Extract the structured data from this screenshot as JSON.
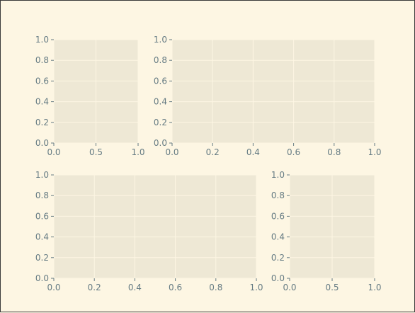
{
  "figure": {
    "background_color": "#fdf6e3",
    "axes_facecolor": "#eee8d5",
    "grid_color": "#fdf6e3",
    "tick_color": "#657b83",
    "tick_label_color": "#657b83"
  },
  "chart_data": [
    {
      "type": "scatter",
      "position": "top-left",
      "title": "",
      "xlabel": "",
      "ylabel": "",
      "series": [],
      "xlim": [
        0,
        1
      ],
      "ylim": [
        0,
        1
      ],
      "x_ticks": [
        0.0,
        0.5,
        1.0
      ],
      "x_tick_labels": [
        "0.0",
        "0.5",
        "1.0"
      ],
      "y_ticks": [
        0.0,
        0.2,
        0.4,
        0.6,
        0.8,
        1.0
      ],
      "y_tick_labels": [
        "0.0",
        "0.2",
        "0.4",
        "0.6",
        "0.8",
        "1.0"
      ],
      "grid": true
    },
    {
      "type": "scatter",
      "position": "top-right",
      "title": "",
      "xlabel": "",
      "ylabel": "",
      "series": [],
      "xlim": [
        0,
        1
      ],
      "ylim": [
        0,
        1
      ],
      "x_ticks": [
        0.0,
        0.2,
        0.4,
        0.6,
        0.8,
        1.0
      ],
      "x_tick_labels": [
        "0.0",
        "0.2",
        "0.4",
        "0.6",
        "0.8",
        "1.0"
      ],
      "y_ticks": [
        0.0,
        0.2,
        0.4,
        0.6,
        0.8,
        1.0
      ],
      "y_tick_labels": [
        "0.0",
        "0.2",
        "0.4",
        "0.6",
        "0.8",
        "1.0"
      ],
      "grid": true
    },
    {
      "type": "scatter",
      "position": "bottom-left",
      "title": "",
      "xlabel": "",
      "ylabel": "",
      "series": [],
      "xlim": [
        0,
        1
      ],
      "ylim": [
        0,
        1
      ],
      "x_ticks": [
        0.0,
        0.2,
        0.4,
        0.6,
        0.8,
        1.0
      ],
      "x_tick_labels": [
        "0.0",
        "0.2",
        "0.4",
        "0.6",
        "0.8",
        "1.0"
      ],
      "y_ticks": [
        0.0,
        0.2,
        0.4,
        0.6,
        0.8,
        1.0
      ],
      "y_tick_labels": [
        "0.0",
        "0.2",
        "0.4",
        "0.6",
        "0.8",
        "1.0"
      ],
      "grid": true
    },
    {
      "type": "scatter",
      "position": "bottom-right",
      "title": "",
      "xlabel": "",
      "ylabel": "",
      "series": [],
      "xlim": [
        0,
        1
      ],
      "ylim": [
        0,
        1
      ],
      "x_ticks": [
        0.0,
        0.5,
        1.0
      ],
      "x_tick_labels": [
        "0.0",
        "0.5",
        "1.0"
      ],
      "y_ticks": [
        0.0,
        0.2,
        0.4,
        0.6,
        0.8,
        1.0
      ],
      "y_tick_labels": [
        "0.0",
        "0.2",
        "0.4",
        "0.6",
        "0.8",
        "1.0"
      ],
      "grid": true
    }
  ]
}
